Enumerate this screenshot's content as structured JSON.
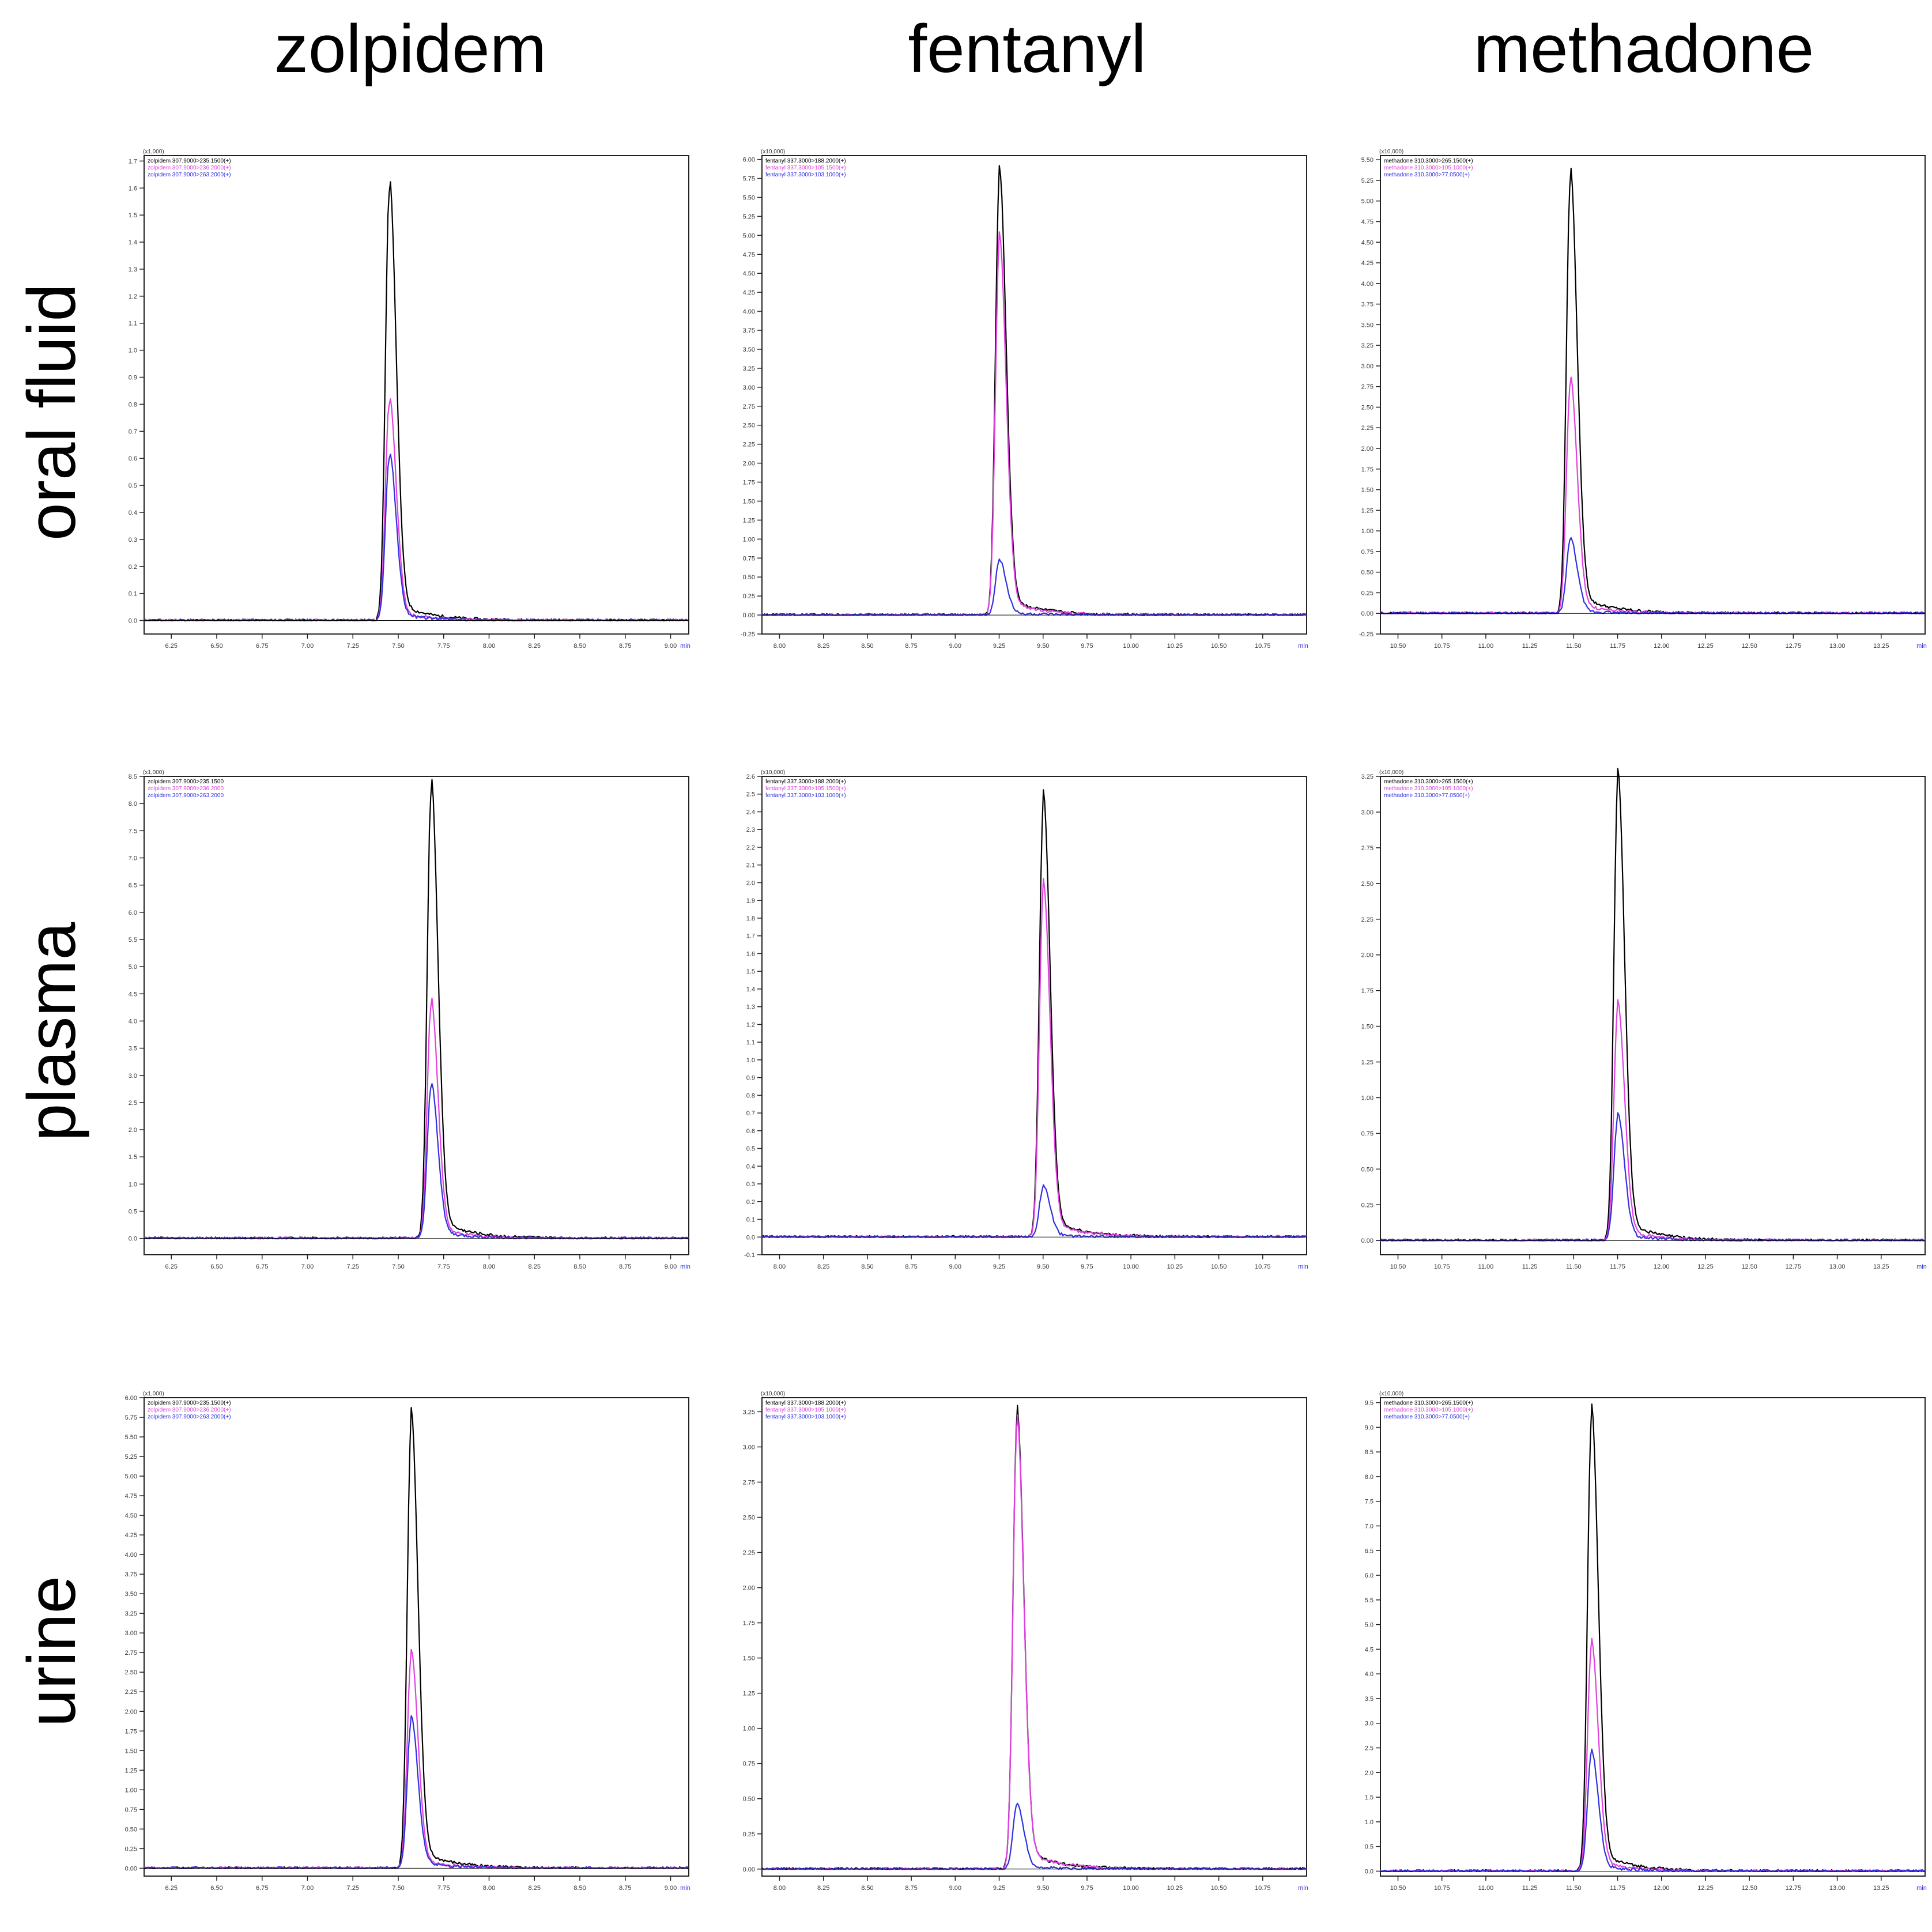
{
  "columns": [
    "zolpidem",
    "fentanyl",
    "methadone"
  ],
  "rows": [
    "oral fluid",
    "plasma",
    "urine"
  ],
  "colors": {
    "black": "#000000",
    "magenta": "#e040e0",
    "blue": "#3030e0"
  },
  "chart_data": [
    {
      "type": "line",
      "drug": "zolpidem",
      "matrix": "oral fluid",
      "scale_label": "(x1,000)",
      "xunit": "min",
      "xlim": [
        6.1,
        9.1
      ],
      "ylim": [
        -0.05,
        1.72
      ],
      "xticks": [
        "6.25",
        "6.50",
        "6.75",
        "7.00",
        "7.25",
        "7.50",
        "7.75",
        "8.00",
        "8.25",
        "8.50",
        "8.75",
        "9.00"
      ],
      "yticks": [
        "0.0",
        "0.1",
        "0.2",
        "0.3",
        "0.4",
        "0.5",
        "0.6",
        "0.7",
        "0.8",
        "0.9",
        "1.0",
        "1.1",
        "1.2",
        "1.3",
        "1.4",
        "1.5",
        "1.6",
        "1.7"
      ],
      "legend": [
        "zolpidem 307.9000>235.1500(+)",
        "zolpidem 307.9000>236.2000(+)",
        "zolpidem 307.9000>263.2000(+)"
      ],
      "series": [
        {
          "name": "zolpidem 307.9000>235.1500(+)",
          "color": "black",
          "peak_rt": 7.45,
          "peak_height": 1.58
        },
        {
          "name": "zolpidem 307.9000>236.2000(+)",
          "color": "magenta",
          "peak_rt": 7.45,
          "peak_height": 0.8
        },
        {
          "name": "zolpidem 307.9000>263.2000(+)",
          "color": "blue",
          "peak_rt": 7.45,
          "peak_height": 0.6
        }
      ]
    },
    {
      "type": "line",
      "drug": "fentanyl",
      "matrix": "oral fluid",
      "scale_label": "(x10,000)",
      "xunit": "min",
      "xlim": [
        7.9,
        11.0
      ],
      "ylim": [
        -0.25,
        6.05
      ],
      "xticks": [
        "8.00",
        "8.25",
        "8.50",
        "8.75",
        "9.00",
        "9.25",
        "9.50",
        "9.75",
        "10.00",
        "10.25",
        "10.50",
        "10.75"
      ],
      "yticks": [
        "-0.25",
        "0.00",
        "0.25",
        "0.50",
        "0.75",
        "1.00",
        "1.25",
        "1.50",
        "1.75",
        "2.00",
        "2.25",
        "2.50",
        "2.75",
        "3.00",
        "3.25",
        "3.50",
        "3.75",
        "4.00",
        "4.25",
        "4.50",
        "4.75",
        "5.00",
        "5.25",
        "5.50",
        "5.75",
        "6.00"
      ],
      "legend": [
        "fentanyl 337.3000>188.2000(+)",
        "fentanyl 337.3000>105.1500(+)",
        "fentanyl 337.3000>103.1000(+)"
      ],
      "series": [
        {
          "name": "fentanyl 337.3000>188.2000(+)",
          "color": "black",
          "peak_rt": 9.25,
          "peak_height": 5.65
        },
        {
          "name": "fentanyl 337.3000>105.1500(+)",
          "color": "magenta",
          "peak_rt": 9.25,
          "peak_height": 4.8
        },
        {
          "name": "fentanyl 337.3000>103.1000(+)",
          "color": "blue",
          "peak_rt": 9.25,
          "peak_height": 0.7
        }
      ]
    },
    {
      "type": "line",
      "drug": "methadone",
      "matrix": "oral fluid",
      "scale_label": "(x10,000)",
      "xunit": "min",
      "xlim": [
        10.4,
        13.5
      ],
      "ylim": [
        -0.25,
        5.55
      ],
      "xticks": [
        "10.50",
        "10.75",
        "11.00",
        "11.25",
        "11.50",
        "11.75",
        "12.00",
        "12.25",
        "12.50",
        "12.75",
        "13.00",
        "13.25"
      ],
      "yticks": [
        "-0.25",
        "0.00",
        "0.25",
        "0.50",
        "0.75",
        "1.00",
        "1.25",
        "1.50",
        "1.75",
        "2.00",
        "2.25",
        "2.50",
        "2.75",
        "3.00",
        "3.25",
        "3.50",
        "3.75",
        "4.00",
        "4.25",
        "4.50",
        "4.75",
        "5.00",
        "5.25",
        "5.50"
      ],
      "legend": [
        "methadone 310.3000>265.1500(+)",
        "methadone 310.3000>105.1000(+)",
        "methadone 310.3000>77.0500(+)"
      ],
      "series": [
        {
          "name": "methadone 310.3000>265.1500(+)",
          "color": "black",
          "peak_rt": 11.48,
          "peak_height": 5.2
        },
        {
          "name": "methadone 310.3000>105.1000(+)",
          "color": "magenta",
          "peak_rt": 11.48,
          "peak_height": 2.75
        },
        {
          "name": "methadone 310.3000>77.0500(+)",
          "color": "blue",
          "peak_rt": 11.48,
          "peak_height": 0.88
        }
      ]
    },
    {
      "type": "line",
      "drug": "zolpidem",
      "matrix": "plasma",
      "scale_label": "(x1,000)",
      "xunit": "min",
      "xlim": [
        6.1,
        9.1
      ],
      "ylim": [
        -0.3,
        8.5
      ],
      "xticks": [
        "6.25",
        "6.50",
        "6.75",
        "7.00",
        "7.25",
        "7.50",
        "7.75",
        "8.00",
        "8.25",
        "8.50",
        "8.75",
        "9.00"
      ],
      "yticks": [
        "0.0",
        "0.5",
        "1.0",
        "1.5",
        "2.0",
        "2.5",
        "3.0",
        "3.5",
        "4.0",
        "4.5",
        "5.0",
        "5.5",
        "6.0",
        "6.5",
        "7.0",
        "7.5",
        "8.0",
        "8.5"
      ],
      "legend": [
        "zolpidem 307.9000>235.1500",
        "zolpidem 307.9000>236.2000",
        "zolpidem 307.9000>263.2000"
      ],
      "series": [
        {
          "name": "zolpidem 307.9000>235.1500",
          "color": "black",
          "peak_rt": 7.68,
          "peak_height": 8.15
        },
        {
          "name": "zolpidem 307.9000>236.2000",
          "color": "magenta",
          "peak_rt": 7.68,
          "peak_height": 4.25
        },
        {
          "name": "zolpidem 307.9000>263.2000",
          "color": "blue",
          "peak_rt": 7.68,
          "peak_height": 2.75
        }
      ]
    },
    {
      "type": "line",
      "drug": "fentanyl",
      "matrix": "plasma",
      "scale_label": "(x10,000)",
      "xunit": "min",
      "xlim": [
        7.9,
        11.0
      ],
      "ylim": [
        -0.1,
        2.6
      ],
      "xticks": [
        "8.00",
        "8.25",
        "8.50",
        "8.75",
        "9.00",
        "9.25",
        "9.50",
        "9.75",
        "10.00",
        "10.25",
        "10.50",
        "10.75"
      ],
      "yticks": [
        "-0.1",
        "0.0",
        "0.1",
        "0.2",
        "0.3",
        "0.4",
        "0.5",
        "0.6",
        "0.7",
        "0.8",
        "0.9",
        "1.0",
        "1.1",
        "1.2",
        "1.3",
        "1.4",
        "1.5",
        "1.6",
        "1.7",
        "1.8",
        "1.9",
        "2.0",
        "2.1",
        "2.2",
        "2.3",
        "2.4",
        "2.5",
        "2.6"
      ],
      "legend": [
        "fentanyl 337.3000>188.2000(+)",
        "fentanyl 337.3000>105.1500(+)",
        "fentanyl 337.3000>103.1000(+)"
      ],
      "series": [
        {
          "name": "fentanyl 337.3000>188.2000(+)",
          "color": "black",
          "peak_rt": 9.5,
          "peak_height": 2.4
        },
        {
          "name": "fentanyl 337.3000>105.1500(+)",
          "color": "magenta",
          "peak_rt": 9.5,
          "peak_height": 1.93
        },
        {
          "name": "fentanyl 337.3000>103.1000(+)",
          "color": "blue",
          "peak_rt": 9.5,
          "peak_height": 0.28
        }
      ]
    },
    {
      "type": "line",
      "drug": "methadone",
      "matrix": "plasma",
      "scale_label": "(x10,000)",
      "xunit": "min",
      "xlim": [
        10.4,
        13.5
      ],
      "ylim": [
        -0.1,
        3.25
      ],
      "xticks": [
        "10.50",
        "10.75",
        "11.00",
        "11.25",
        "11.50",
        "11.75",
        "12.00",
        "12.25",
        "12.50",
        "12.75",
        "13.00",
        "13.25"
      ],
      "yticks": [
        "0.00",
        "0.25",
        "0.50",
        "0.75",
        "1.00",
        "1.25",
        "1.50",
        "1.75",
        "2.00",
        "2.25",
        "2.50",
        "2.75",
        "3.00",
        "3.25"
      ],
      "legend": [
        "methadone 310.3000>265.1500(+)",
        "methadone 310.3000>105.1000(+)",
        "methadone 310.3000>77.0500(+)"
      ],
      "series": [
        {
          "name": "methadone 310.3000>265.1500(+)",
          "color": "black",
          "peak_rt": 11.75,
          "peak_height": 3.15
        },
        {
          "name": "methadone 310.3000>105.1000(+)",
          "color": "magenta",
          "peak_rt": 11.75,
          "peak_height": 1.6
        },
        {
          "name": "methadone 310.3000>77.0500(+)",
          "color": "blue",
          "peak_rt": 11.75,
          "peak_height": 0.85
        }
      ]
    },
    {
      "type": "line",
      "drug": "zolpidem",
      "matrix": "urine",
      "scale_label": "(x1,000)",
      "xunit": "min",
      "xlim": [
        6.1,
        9.1
      ],
      "ylim": [
        -0.1,
        6.0
      ],
      "xticks": [
        "6.25",
        "6.50",
        "6.75",
        "7.00",
        "7.25",
        "7.50",
        "7.75",
        "8.00",
        "8.25",
        "8.50",
        "8.75",
        "9.00"
      ],
      "yticks": [
        "0.00",
        "0.25",
        "0.50",
        "0.75",
        "1.00",
        "1.25",
        "1.50",
        "1.75",
        "2.00",
        "2.25",
        "2.50",
        "2.75",
        "3.00",
        "3.25",
        "3.50",
        "3.75",
        "4.00",
        "4.25",
        "4.50",
        "4.75",
        "5.00",
        "5.25",
        "5.50",
        "5.75",
        "6.00"
      ],
      "legend": [
        "zolpidem 307.9000>235.1500(+)",
        "zolpidem 307.9000>236.2000(+)",
        "zolpidem 307.9000>263.2000(+)"
      ],
      "series": [
        {
          "name": "zolpidem 307.9000>235.1500(+)",
          "color": "black",
          "peak_rt": 7.57,
          "peak_height": 5.6
        },
        {
          "name": "zolpidem 307.9000>236.2000(+)",
          "color": "magenta",
          "peak_rt": 7.57,
          "peak_height": 2.65
        },
        {
          "name": "zolpidem 307.9000>263.2000(+)",
          "color": "blue",
          "peak_rt": 7.57,
          "peak_height": 1.85
        }
      ]
    },
    {
      "type": "line",
      "drug": "fentanyl",
      "matrix": "urine",
      "scale_label": "(x10,000)",
      "xunit": "min",
      "xlim": [
        7.9,
        11.0
      ],
      "ylim": [
        -0.05,
        3.35
      ],
      "xticks": [
        "8.00",
        "8.25",
        "8.50",
        "8.75",
        "9.00",
        "9.25",
        "9.50",
        "9.75",
        "10.00",
        "10.25",
        "10.50",
        "10.75"
      ],
      "yticks": [
        "0.00",
        "0.25",
        "0.50",
        "0.75",
        "1.00",
        "1.25",
        "1.50",
        "1.75",
        "2.00",
        "2.25",
        "2.50",
        "2.75",
        "3.00",
        "3.25"
      ],
      "legend": [
        "fentanyl 337.3000>188.2000(+)",
        "fentanyl 337.3000>105.1000(+)",
        "fentanyl 337.3000>103.1000(+)"
      ],
      "series": [
        {
          "name": "fentanyl 337.3000>188.2000(+)",
          "color": "black",
          "peak_rt": 9.35,
          "peak_height": 3.15
        },
        {
          "name": "fentanyl 337.3000>105.1000(+)",
          "color": "magenta",
          "peak_rt": 9.35,
          "peak_height": 3.1
        },
        {
          "name": "fentanyl 337.3000>103.1000(+)",
          "color": "blue",
          "peak_rt": 9.35,
          "peak_height": 0.45
        }
      ]
    },
    {
      "type": "line",
      "drug": "methadone",
      "matrix": "urine",
      "scale_label": "(x10,000)",
      "xunit": "min",
      "xlim": [
        10.4,
        13.5
      ],
      "ylim": [
        -0.1,
        9.6
      ],
      "xticks": [
        "10.50",
        "10.75",
        "11.00",
        "11.25",
        "11.50",
        "11.75",
        "12.00",
        "12.25",
        "12.50",
        "12.75",
        "13.00",
        "13.25"
      ],
      "yticks": [
        "0.0",
        "0.5",
        "1.0",
        "1.5",
        "2.0",
        "2.5",
        "3.0",
        "3.5",
        "4.0",
        "4.5",
        "5.0",
        "5.5",
        "6.0",
        "6.5",
        "7.0",
        "7.5",
        "8.0",
        "8.5",
        "9.0",
        "9.5"
      ],
      "legend": [
        "methadone 310.3000>265.1500(+)",
        "methadone 310.3000>105.1000(+)",
        "methadone 310.3000>77.0500(+)"
      ],
      "series": [
        {
          "name": "methadone 310.3000>265.1500(+)",
          "color": "black",
          "peak_rt": 11.6,
          "peak_height": 9.05
        },
        {
          "name": "methadone 310.3000>105.1000(+)",
          "color": "magenta",
          "peak_rt": 11.6,
          "peak_height": 4.5
        },
        {
          "name": "methadone 310.3000>77.0500(+)",
          "color": "blue",
          "peak_rt": 11.6,
          "peak_height": 2.35
        }
      ]
    }
  ]
}
